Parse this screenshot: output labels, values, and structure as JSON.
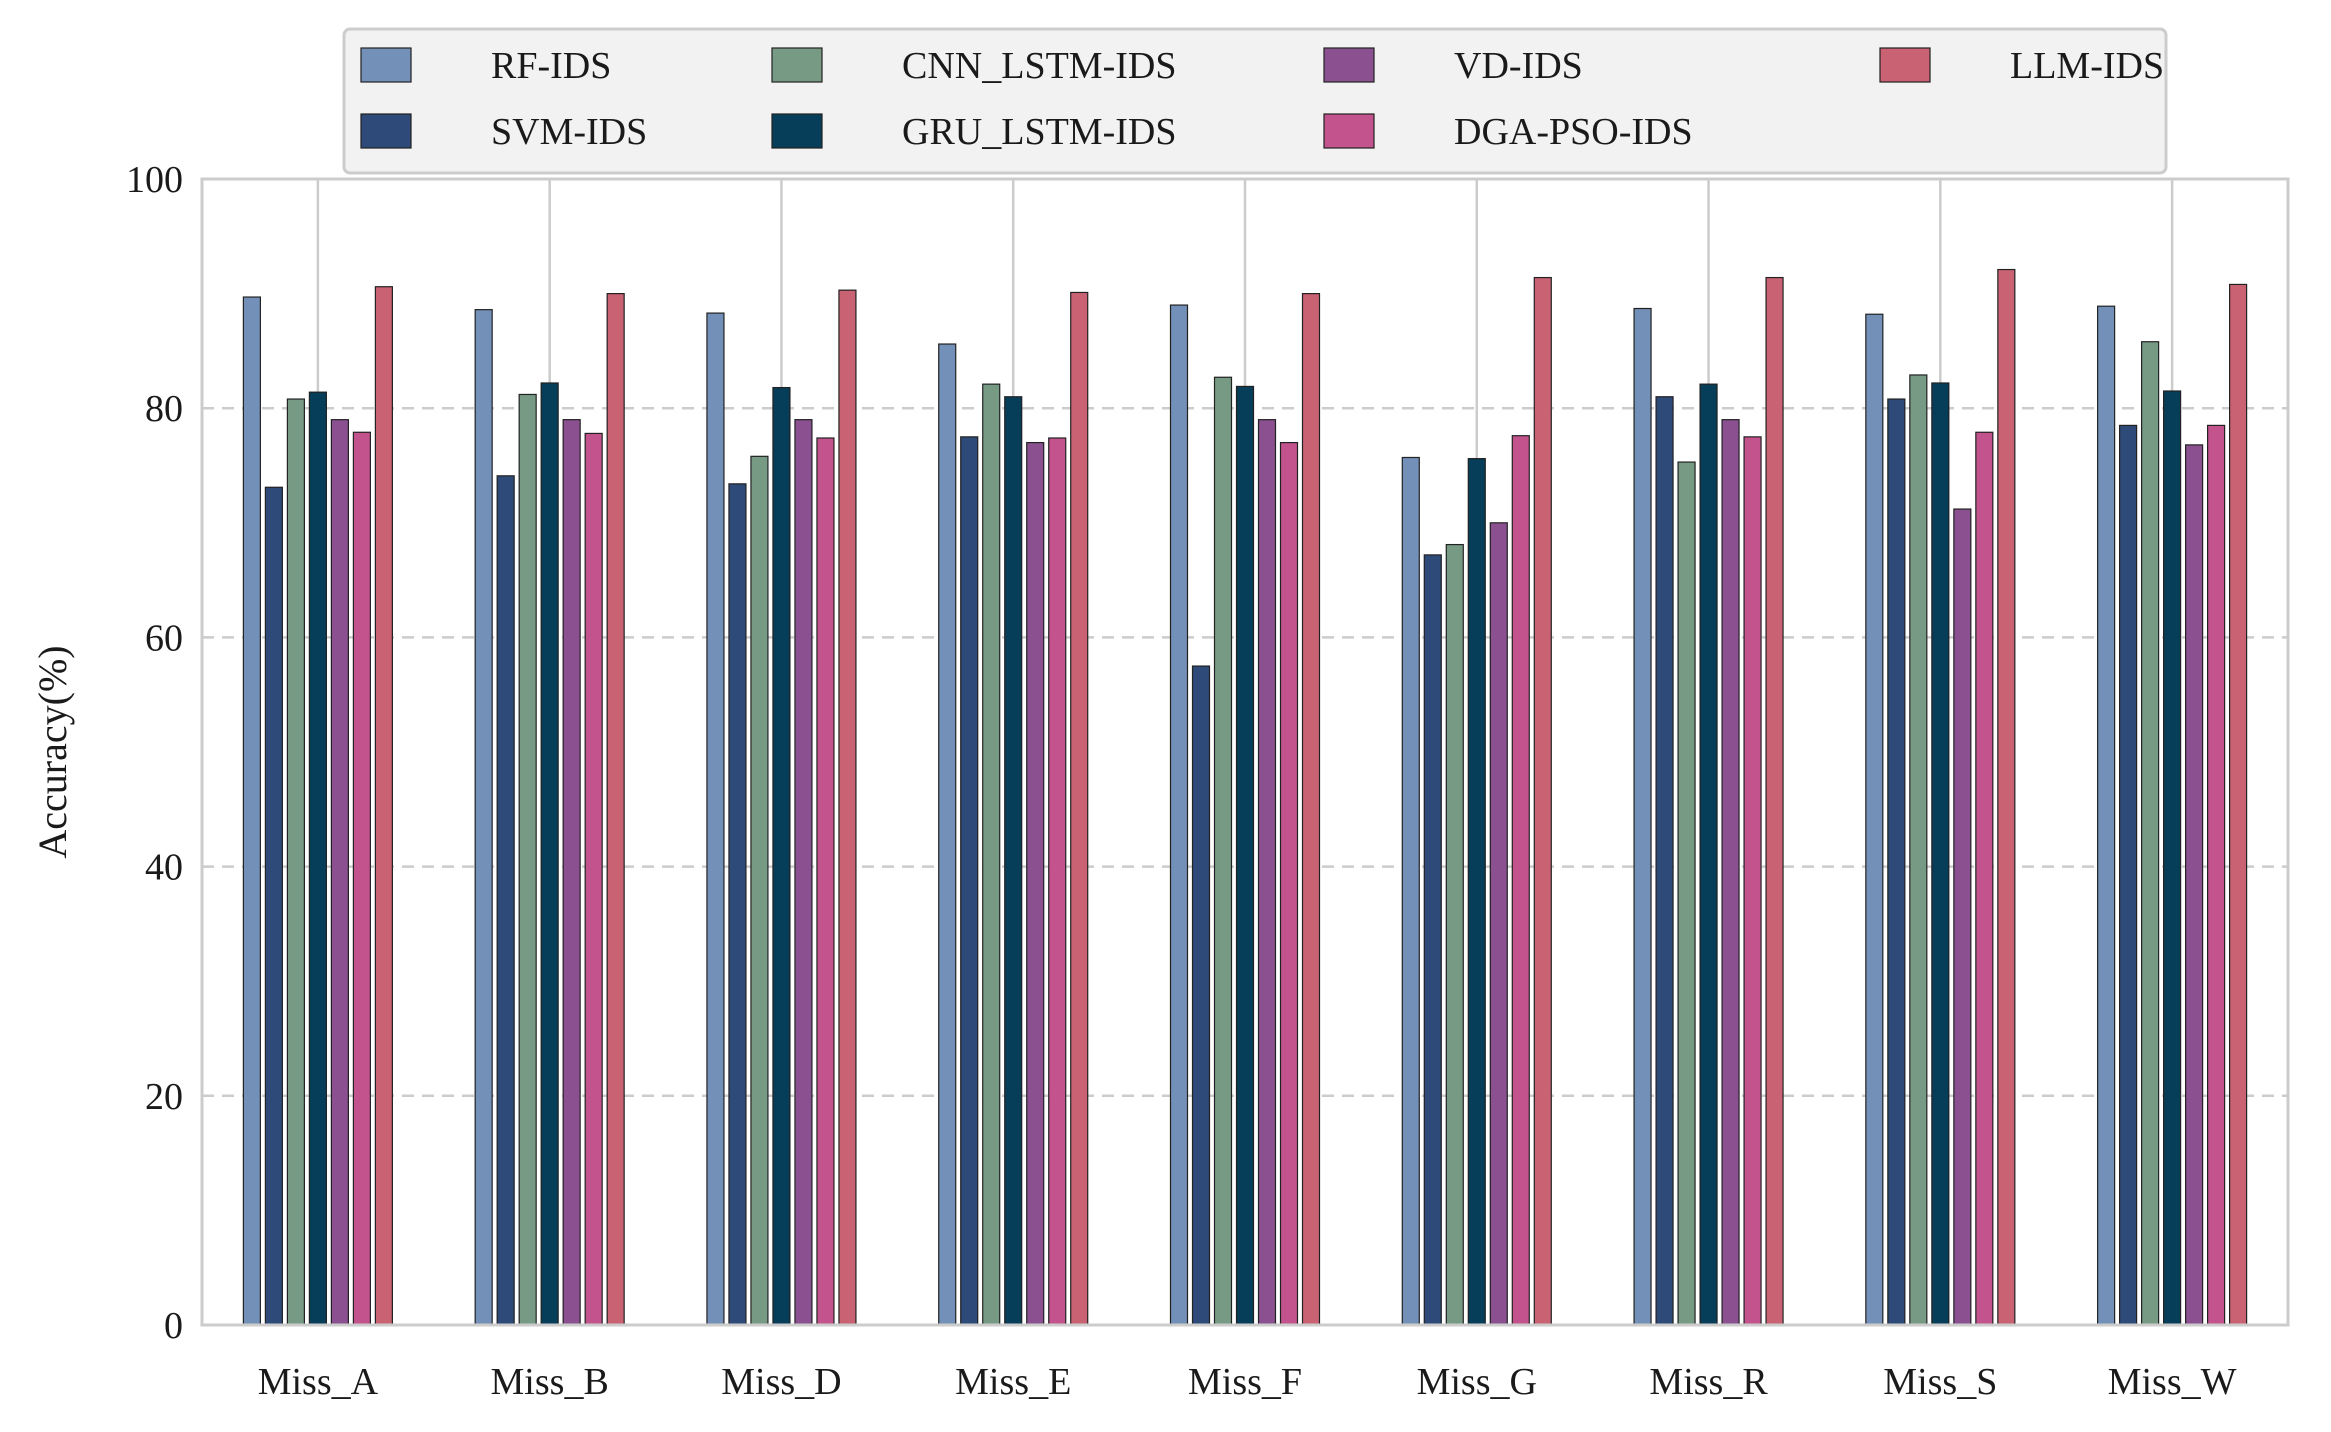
{
  "chart_data": {
    "type": "bar",
    "title": "",
    "xlabel": "",
    "ylabel": "Accuracy(%)",
    "ylim": [
      0,
      100
    ],
    "yticks": [
      "0",
      "20",
      "40",
      "60",
      "80",
      "100"
    ],
    "ytick_values": [
      0,
      20,
      40,
      60,
      80,
      100
    ],
    "grid": "horizontal dashed",
    "legend_position": "top",
    "categories": [
      "Miss_A",
      "Miss_B",
      "Miss_D",
      "Miss_E",
      "Miss_F",
      "Miss_G",
      "Miss_R",
      "Miss_S",
      "Miss_W"
    ],
    "series": [
      {
        "name": "RF-IDS",
        "color": "#7390B8",
        "values": [
          89.7,
          88.6,
          88.3,
          85.6,
          89.0,
          75.7,
          88.7,
          88.2,
          88.9
        ]
      },
      {
        "name": "SVM-IDS",
        "color": "#2E4A78",
        "values": [
          73.1,
          74.1,
          73.4,
          77.5,
          57.5,
          67.2,
          81.0,
          80.8,
          78.5
        ]
      },
      {
        "name": "CNN_LSTM-IDS",
        "color": "#779A85",
        "values": [
          80.8,
          81.2,
          75.8,
          82.1,
          82.7,
          68.1,
          75.3,
          82.9,
          85.8
        ]
      },
      {
        "name": "GRU_LSTM-IDS",
        "color": "#063D58",
        "values": [
          81.4,
          82.2,
          81.8,
          81.0,
          81.9,
          75.6,
          82.1,
          82.2,
          81.5
        ]
      },
      {
        "name": "VD-IDS",
        "color": "#8A5090",
        "values": [
          79.0,
          79.0,
          79.0,
          77.0,
          79.0,
          70.0,
          79.0,
          71.2,
          76.8
        ]
      },
      {
        "name": "DGA-PSO-IDS",
        "color": "#C3538D",
        "values": [
          77.9,
          77.8,
          77.4,
          77.4,
          77.0,
          77.6,
          77.5,
          77.9,
          78.5
        ]
      },
      {
        "name": "LLM-IDS",
        "color": "#C96272",
        "values": [
          90.6,
          90.0,
          90.3,
          90.1,
          90.0,
          91.4,
          91.4,
          92.1,
          90.8
        ]
      }
    ]
  }
}
